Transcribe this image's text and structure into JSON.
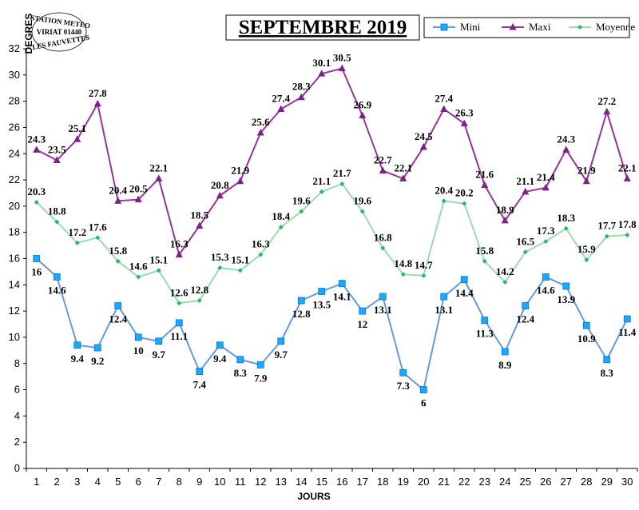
{
  "chart_data": {
    "type": "line",
    "title": "SEPTEMBRE 2019",
    "xlabel": "JOURS",
    "ylabel": "DEGRES",
    "x": [
      1,
      2,
      3,
      4,
      5,
      6,
      7,
      8,
      9,
      10,
      11,
      12,
      13,
      14,
      15,
      16,
      17,
      18,
      19,
      20,
      21,
      22,
      23,
      24,
      25,
      26,
      27,
      28,
      29,
      30
    ],
    "ylim": [
      0,
      32
    ],
    "yticks": [
      0,
      2,
      4,
      6,
      8,
      10,
      12,
      14,
      16,
      18,
      20,
      22,
      24,
      26,
      28,
      30,
      32
    ],
    "grid": false,
    "legend_position": "top-right",
    "series": [
      {
        "name": "Mini",
        "color": "#6699dd",
        "marker": "square",
        "marker_color": "#1ea7ff",
        "values": [
          16,
          14.6,
          9.4,
          9.2,
          12.4,
          10,
          9.7,
          11.1,
          7.4,
          9.4,
          8.3,
          7.9,
          9.7,
          12.8,
          13.5,
          14.1,
          12,
          13.1,
          7.3,
          6,
          13.1,
          14.4,
          11.3,
          8.9,
          12.4,
          14.6,
          13.9,
          10.9,
          8.3,
          11.4
        ]
      },
      {
        "name": "Maxi",
        "color": "#993399",
        "marker": "triangle",
        "marker_color": "#7a2288",
        "values": [
          24.3,
          23.5,
          25.1,
          27.8,
          20.4,
          20.5,
          22.1,
          16.3,
          18.5,
          20.8,
          21.9,
          25.6,
          27.4,
          28.3,
          30.1,
          30.5,
          26.9,
          22.7,
          22.1,
          24.5,
          27.4,
          26.3,
          21.6,
          18.9,
          21.1,
          21.4,
          24.3,
          21.9,
          27.2,
          22.1
        ]
      },
      {
        "name": "Moyenne",
        "color": "#99ddaa",
        "marker": "diamond",
        "marker_color": "#22bb66",
        "values": [
          20.3,
          18.8,
          17.2,
          17.6,
          15.8,
          14.6,
          15.1,
          12.6,
          12.8,
          15.3,
          15.1,
          16.3,
          18.4,
          19.6,
          21.1,
          21.7,
          19.6,
          16.8,
          14.8,
          14.7,
          20.4,
          20.2,
          15.8,
          14.2,
          16.5,
          17.3,
          18.3,
          15.9,
          17.7,
          17.8
        ]
      }
    ]
  },
  "stamp": {
    "lines": [
      "STATION METEO",
      "VIRIAT 01440",
      "LES FAUVETTES"
    ]
  }
}
